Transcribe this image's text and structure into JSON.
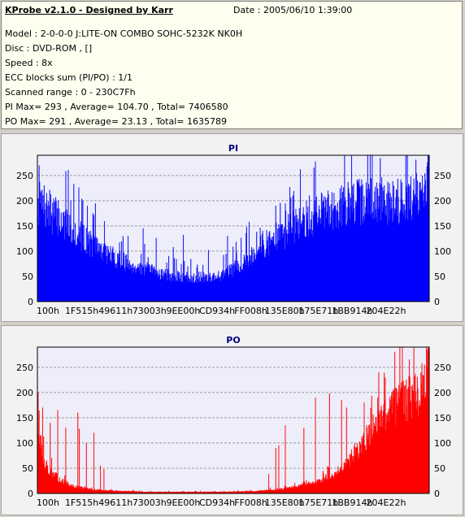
{
  "header": {
    "app_title": "KProbe v2.1.0 - Designed by Karr",
    "date": "Date : 2005/06/10 1:39:00",
    "lines": [
      "Model : 2-0-0-0 J:LITE-ON COMBO SOHC-5232K NK0H",
      "Disc : DVD-ROM ,  []",
      "Speed : 8x",
      "ECC blocks sum (PI/PO) : 1/1",
      "Scanned range : 0 - 230C7Fh",
      "PI Max= 293 , Average= 104.70 , Total= 7406580",
      "PO Max= 291 , Average= 23.13 , Total= 1635789"
    ]
  },
  "chart_data": [
    {
      "type": "area",
      "title": "PI",
      "color": "#0000ff",
      "plot_bg": "#eeeefa",
      "grid": true,
      "ylim": [
        0,
        290
      ],
      "yticks": [
        0,
        50,
        100,
        150,
        200,
        250
      ],
      "xlim": [
        0,
        1960
      ],
      "x_ticks": [
        "100h",
        "1F515h",
        "49611h",
        "73003h",
        "9EE00h",
        "CD934h",
        "FF008h",
        "135E80h",
        "175E71h",
        "1BB914h",
        "204E22h"
      ],
      "profile": [
        [
          0,
          205
        ],
        [
          15,
          195
        ],
        [
          40,
          175
        ],
        [
          70,
          150
        ],
        [
          100,
          125
        ],
        [
          130,
          105
        ],
        [
          160,
          88
        ],
        [
          190,
          75
        ],
        [
          220,
          65
        ],
        [
          250,
          58
        ],
        [
          270,
          52
        ],
        [
          300,
          50
        ],
        [
          330,
          50
        ],
        [
          360,
          53
        ],
        [
          380,
          62
        ],
        [
          400,
          75
        ],
        [
          420,
          90
        ],
        [
          440,
          110
        ],
        [
          470,
          130
        ],
        [
          500,
          148
        ],
        [
          520,
          162
        ],
        [
          550,
          178
        ],
        [
          580,
          192
        ],
        [
          610,
          202
        ],
        [
          640,
          208
        ],
        [
          670,
          210
        ],
        [
          700,
          210
        ],
        [
          730,
          212
        ],
        [
          755,
          216
        ],
        [
          765,
          235
        ],
        [
          775,
          262
        ],
        [
          780,
          275
        ]
      ],
      "spikes": [
        [
          6,
          220
        ],
        [
          18,
          215
        ],
        [
          41,
          200
        ],
        [
          90,
          200
        ],
        [
          110,
          175
        ],
        [
          180,
          130
        ],
        [
          210,
          145
        ],
        [
          236,
          126
        ],
        [
          270,
          108
        ],
        [
          290,
          132
        ],
        [
          340,
          102
        ],
        [
          378,
          130
        ],
        [
          395,
          118
        ],
        [
          421,
          158
        ],
        [
          448,
          140
        ],
        [
          474,
          190
        ],
        [
          494,
          180
        ],
        [
          541,
          210
        ],
        [
          552,
          200
        ],
        [
          568,
          198
        ],
        [
          590,
          215
        ],
        [
          605,
          230
        ],
        [
          778,
          293
        ]
      ],
      "seed": 7
    },
    {
      "type": "area",
      "title": "PO",
      "color": "#ff0000",
      "plot_bg": "#eeeefa",
      "grid": true,
      "ylim": [
        0,
        290
      ],
      "yticks": [
        0,
        50,
        100,
        150,
        200,
        250
      ],
      "xlim": [
        0,
        1960
      ],
      "x_ticks": [
        "100h",
        "1F515h",
        "49611h",
        "73003h",
        "9EE00h",
        "CD934h",
        "FF008h",
        "135E80h",
        "175E71h",
        "1BB914h",
        "204E22h"
      ],
      "profile": [
        [
          0,
          190
        ],
        [
          5,
          110
        ],
        [
          12,
          70
        ],
        [
          25,
          45
        ],
        [
          45,
          28
        ],
        [
          70,
          15
        ],
        [
          110,
          8
        ],
        [
          160,
          5
        ],
        [
          220,
          3
        ],
        [
          300,
          3
        ],
        [
          380,
          3
        ],
        [
          440,
          5
        ],
        [
          480,
          8
        ],
        [
          520,
          15
        ],
        [
          560,
          25
        ],
        [
          590,
          40
        ],
        [
          620,
          70
        ],
        [
          650,
          110
        ],
        [
          680,
          150
        ],
        [
          710,
          180
        ],
        [
          740,
          200
        ],
        [
          760,
          210
        ],
        [
          775,
          250
        ],
        [
          780,
          262
        ]
      ],
      "spikes": [
        [
          1,
          200
        ],
        [
          10,
          170
        ],
        [
          25,
          140
        ],
        [
          40,
          165
        ],
        [
          56,
          130
        ],
        [
          80,
          160
        ],
        [
          83,
          128
        ],
        [
          97,
          100
        ],
        [
          112,
          120
        ],
        [
          125,
          55
        ],
        [
          132,
          48
        ],
        [
          460,
          38
        ],
        [
          474,
          90
        ],
        [
          480,
          95
        ],
        [
          493,
          135
        ],
        [
          530,
          130
        ],
        [
          553,
          190
        ],
        [
          581,
          198
        ],
        [
          605,
          185
        ],
        [
          615,
          170
        ],
        [
          650,
          180
        ],
        [
          778,
          291
        ]
      ],
      "seed": 13
    }
  ]
}
